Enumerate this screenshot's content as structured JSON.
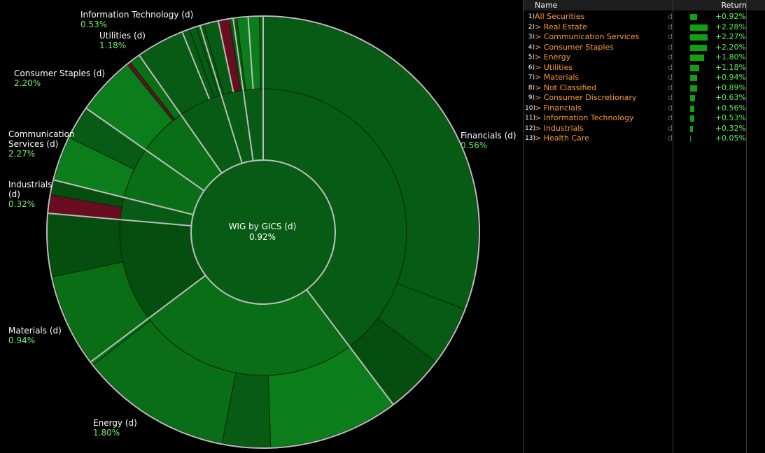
{
  "chart_data": {
    "type": "sunburst",
    "title": "WIG by GICS (d)",
    "center_value": "0.92%",
    "sectors": [
      {
        "name": "Financials (d)",
        "value": "0.56%"
      },
      {
        "name": "Information Technology (d)",
        "value": "0.53%"
      },
      {
        "name": "Utilities (d)",
        "value": "1.18%"
      },
      {
        "name": "Consumer Staples (d)",
        "value": "2.20%"
      },
      {
        "name": "Communication Services (d)",
        "value": "2.27%"
      },
      {
        "name": "Industrials (d)",
        "value": "0.32%"
      },
      {
        "name": "Materials (d)",
        "value": "0.94%"
      },
      {
        "name": "Energy (d)",
        "value": "1.80%"
      }
    ]
  },
  "panel": {
    "header": {
      "name": "Name",
      "return": "Return"
    },
    "rows": [
      {
        "idx": "1)",
        "name": "All Securities",
        "d": "d",
        "ret": "+0.92%",
        "pct": 0.92
      },
      {
        "idx": "2)",
        "name": "> Real Estate",
        "d": "d",
        "ret": "+2.28%",
        "pct": 2.28
      },
      {
        "idx": "3)",
        "name": "> Communication Services",
        "d": "d",
        "ret": "+2.27%",
        "pct": 2.27
      },
      {
        "idx": "4)",
        "name": "> Consumer Staples",
        "d": "d",
        "ret": "+2.20%",
        "pct": 2.2
      },
      {
        "idx": "5)",
        "name": "> Energy",
        "d": "d",
        "ret": "+1.80%",
        "pct": 1.8
      },
      {
        "idx": "6)",
        "name": "> Utilities",
        "d": "d",
        "ret": "+1.18%",
        "pct": 1.18
      },
      {
        "idx": "7)",
        "name": "> Materials",
        "d": "d",
        "ret": "+0.94%",
        "pct": 0.94
      },
      {
        "idx": "8)",
        "name": "> Not Classified",
        "d": "d",
        "ret": "+0.89%",
        "pct": 0.89
      },
      {
        "idx": "9)",
        "name": "> Consumer Discretionary",
        "d": "d",
        "ret": "+0.63%",
        "pct": 0.63
      },
      {
        "idx": "10)",
        "name": "> Financials",
        "d": "d",
        "ret": "+0.56%",
        "pct": 0.56
      },
      {
        "idx": "11)",
        "name": "> Information Technology",
        "d": "d",
        "ret": "+0.53%",
        "pct": 0.53
      },
      {
        "idx": "12)",
        "name": "> Industrials",
        "d": "d",
        "ret": "+0.32%",
        "pct": 0.32
      },
      {
        "idx": "13)",
        "name": "> Health Care",
        "d": "d",
        "ret": "+0.05%",
        "pct": 0.05
      }
    ]
  },
  "colors": {
    "dark_green": "#075b14",
    "mid_green": "#0a6e16",
    "bright_green": "#0b7d1a",
    "deeper_green": "#064d10",
    "red": "#6a0d20",
    "separator": "#bdbdbd",
    "label_value": "#6cf06c",
    "panel_name": "#ff9a2e",
    "panel_return": "#5af05a",
    "panel_bar": "#11a011"
  }
}
